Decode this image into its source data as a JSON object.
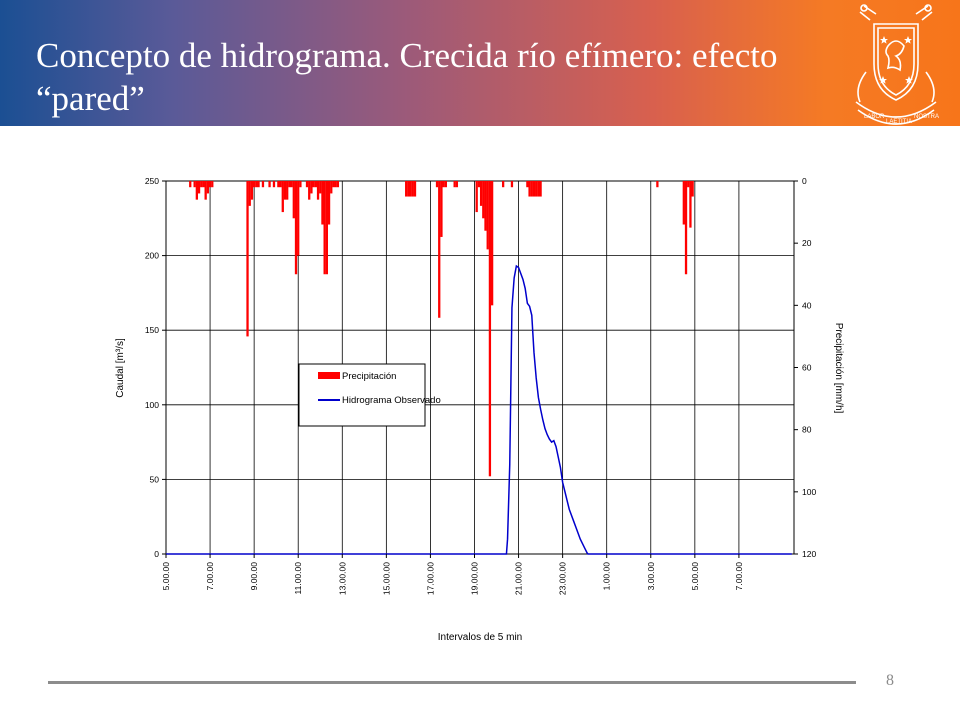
{
  "slide": {
    "title": "Concepto de hidrograma. Crecida río efímero: efecto “pared”",
    "page_number": "8",
    "crest_text": [
      "LABOR",
      "LAETITIA",
      "NOSTRA"
    ]
  },
  "colors": {
    "header_gradient": [
      "#1b4f93",
      "#9b5a7a",
      "#f7751a"
    ],
    "precipitation": "#ff0000",
    "hydrograph": "#0000cc"
  },
  "chart_data": {
    "type": "bar+line",
    "xlabel": "Intervalos de 5 min",
    "ylabel": "Caudal [m³/s]",
    "ylabel_right": "Precipitación [mm/h]",
    "ylim": [
      0,
      250
    ],
    "yticks": [
      0,
      50,
      100,
      150,
      200,
      250
    ],
    "ylim_right": [
      0,
      120
    ],
    "right_axis_inverted": true,
    "yticks_right": [
      0,
      20,
      40,
      60,
      80,
      100,
      120
    ],
    "xlim": [
      5,
      33.5
    ],
    "x_unit": "hours from 0.00 of first day",
    "xticks": [
      5,
      7,
      9,
      11,
      13,
      15,
      17,
      19,
      21,
      23,
      25,
      27,
      29,
      31
    ],
    "xtick_labels": [
      "5.00.00",
      "7.00.00",
      "9.00.00",
      "11.00.00",
      "13.00.00",
      "15.00.00",
      "17.00.00",
      "19.00.00",
      "21.00.00",
      "23.00.00",
      "1.00.00",
      "3.00.00",
      "5.00.00",
      "7.00.00"
    ],
    "grid": true,
    "legend": {
      "position": "center-left",
      "entries": [
        "Precipitación",
        "Hidrograma Observado"
      ]
    },
    "series": [
      {
        "name": "Precipitación",
        "kind": "bar",
        "axis": "right",
        "x": [
          6.1,
          6.3,
          6.4,
          6.5,
          6.6,
          6.7,
          6.8,
          6.9,
          7.0,
          7.1,
          8.7,
          8.8,
          8.9,
          9.0,
          9.1,
          9.2,
          9.4,
          9.7,
          9.9,
          10.1,
          10.2,
          10.3,
          10.4,
          10.5,
          10.6,
          10.7,
          10.8,
          10.9,
          11.0,
          11.1,
          11.4,
          11.5,
          11.6,
          11.7,
          11.8,
          11.9,
          12.0,
          12.1,
          12.2,
          12.3,
          12.4,
          12.5,
          12.6,
          12.7,
          12.8,
          15.9,
          16.0,
          16.1,
          16.2,
          16.3,
          17.3,
          17.4,
          17.5,
          17.6,
          17.7,
          18.1,
          18.2,
          19.1,
          19.2,
          19.3,
          19.4,
          19.5,
          19.6,
          19.7,
          19.8,
          20.3,
          20.7,
          21.4,
          21.5,
          21.6,
          21.7,
          21.8,
          21.9,
          22.0,
          27.3,
          28.5,
          28.6,
          28.7,
          28.8,
          28.9
        ],
        "values": [
          2,
          2,
          6,
          4,
          2,
          2,
          6,
          4,
          2,
          2,
          50,
          8,
          6,
          2,
          2,
          2,
          2,
          2,
          2,
          2,
          2,
          10,
          6,
          6,
          2,
          2,
          12,
          30,
          24,
          2,
          2,
          6,
          4,
          2,
          2,
          6,
          4,
          14,
          30,
          30,
          14,
          4,
          2,
          2,
          2,
          5,
          5,
          5,
          5,
          5,
          2,
          44,
          18,
          2,
          2,
          2,
          2,
          10,
          2,
          8,
          12,
          16,
          22,
          95,
          40,
          2,
          2,
          2,
          5,
          5,
          5,
          5,
          5,
          5,
          2,
          14,
          30,
          2,
          15,
          5
        ]
      },
      {
        "name": "Hidrograma Observado",
        "kind": "line",
        "axis": "left",
        "x": [
          5.0,
          20.45,
          20.5,
          20.6,
          20.7,
          20.8,
          20.9,
          21.0,
          21.1,
          21.2,
          21.3,
          21.4,
          21.5,
          21.6,
          21.7,
          21.8,
          21.9,
          22.0,
          22.1,
          22.2,
          22.3,
          22.4,
          22.5,
          22.6,
          22.7,
          22.8,
          22.9,
          23.0,
          23.1,
          23.2,
          23.3,
          23.4,
          23.5,
          23.6,
          23.7,
          23.8,
          23.9,
          24.0,
          24.1,
          24.15,
          33.4
        ],
        "values": [
          0,
          0,
          10,
          60,
          165,
          185,
          193,
          192,
          188,
          184,
          178,
          168,
          166,
          160,
          135,
          118,
          105,
          97,
          90,
          84,
          80,
          77,
          75,
          76,
          72,
          65,
          58,
          48,
          42,
          36,
          30,
          26,
          22,
          18,
          14,
          10,
          7,
          4,
          1,
          0,
          0
        ]
      }
    ]
  }
}
